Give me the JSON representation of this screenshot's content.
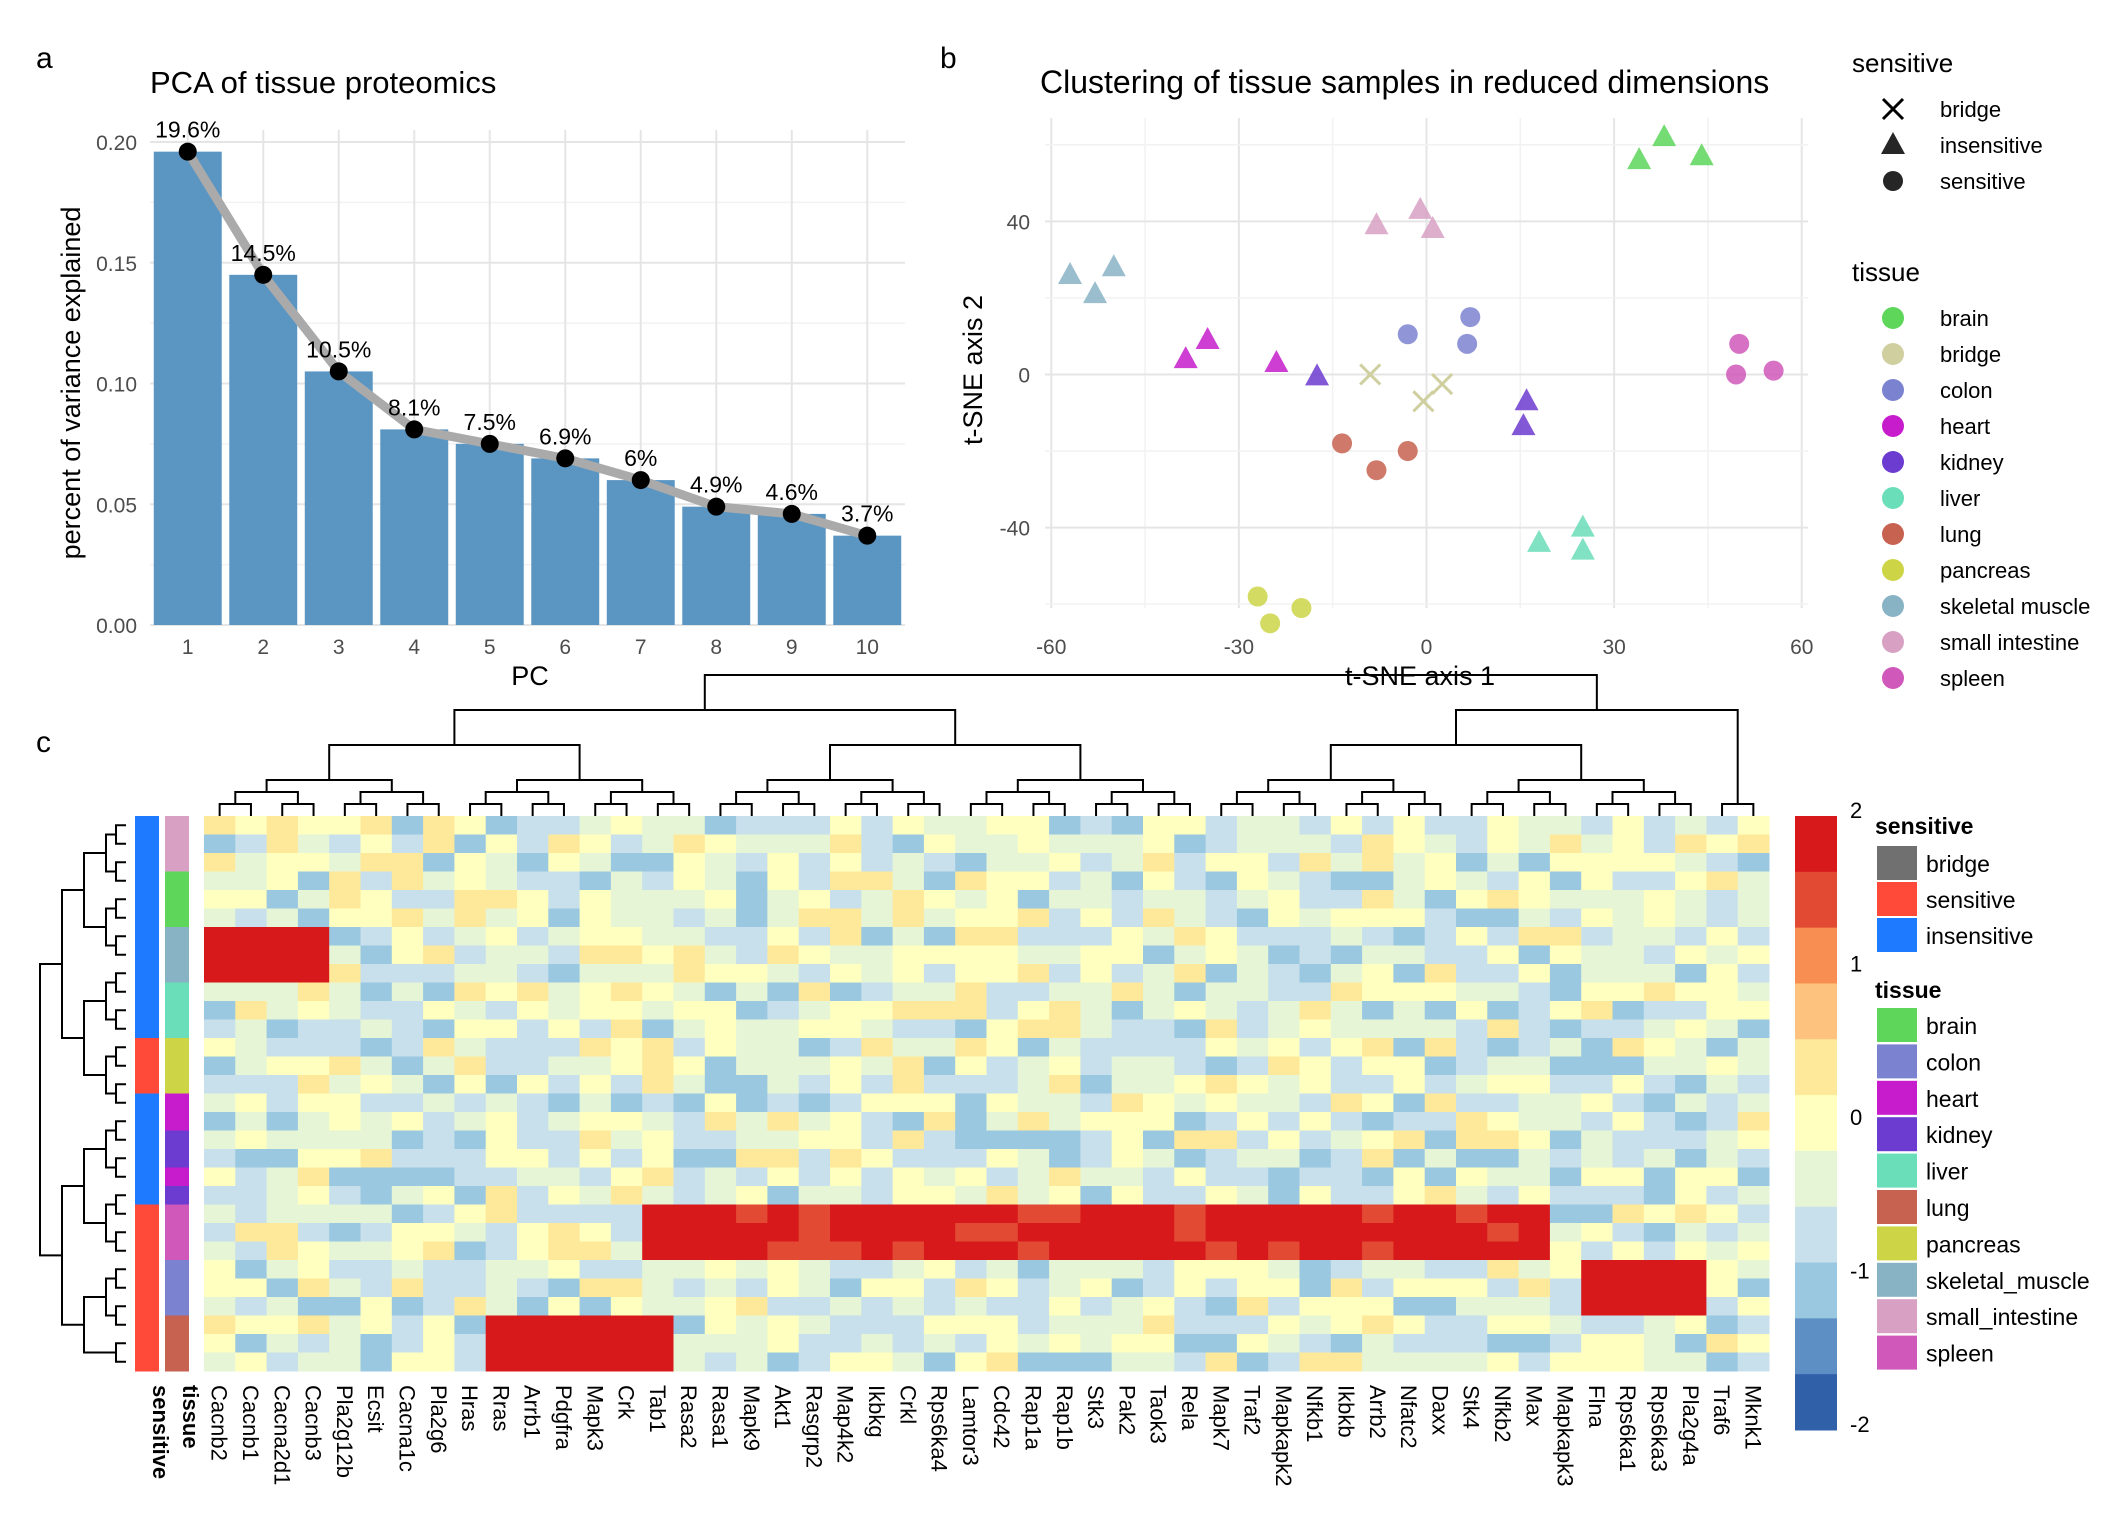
{
  "panels": {
    "a": "a",
    "b": "b",
    "c": "c"
  },
  "chart_data": [
    {
      "type": "bar",
      "title": "PCA of tissue proteomics",
      "xlabel": "PC",
      "ylabel": "percent of variance explained",
      "categories": [
        "1",
        "2",
        "3",
        "4",
        "5",
        "6",
        "7",
        "8",
        "9",
        "10"
      ],
      "values": [
        0.196,
        0.145,
        0.105,
        0.081,
        0.075,
        0.069,
        0.06,
        0.049,
        0.046,
        0.037
      ],
      "labels": [
        "19.6%",
        "14.5%",
        "10.5%",
        "8.1%",
        "7.5%",
        "6.9%",
        "6%",
        "4.9%",
        "4.6%",
        "3.7%"
      ],
      "ylim": [
        0,
        0.2
      ],
      "yticks": [
        0,
        0.05,
        0.1,
        0.15,
        0.2
      ],
      "ytick_labels": [
        "0.00",
        "0.05",
        "0.10",
        "0.15",
        "0.20"
      ],
      "bar_color": "#5B95C2",
      "line_color": "#AAAAAA",
      "grid": true
    },
    {
      "type": "scatter",
      "title": "Clustering of tissue samples in reduced dimensions",
      "xlabel": "t-SNE axis 1",
      "ylabel": "t-SNE axis 2",
      "xlim": [
        -61,
        61
      ],
      "ylim": [
        -61,
        67
      ],
      "xticks": [
        -60,
        -30,
        0,
        30,
        60
      ],
      "yticks": [
        -40,
        0,
        40
      ],
      "grid": true,
      "shape_legend": {
        "title": "sensitive",
        "items": [
          {
            "label": "bridge",
            "shape": "cross"
          },
          {
            "label": "insensitive",
            "shape": "triangle"
          },
          {
            "label": "sensitive",
            "shape": "circle"
          }
        ]
      },
      "color_legend": {
        "title": "tissue",
        "items": [
          {
            "label": "brain",
            "color": "#5DD65A"
          },
          {
            "label": "bridge",
            "color": "#CFCFA0"
          },
          {
            "label": "colon",
            "color": "#7B83D0"
          },
          {
            "label": "heart",
            "color": "#C61CCB"
          },
          {
            "label": "kidney",
            "color": "#6C3BCF"
          },
          {
            "label": "liver",
            "color": "#6ADDB9"
          },
          {
            "label": "lung",
            "color": "#C76150"
          },
          {
            "label": "pancreas",
            "color": "#CDD547"
          },
          {
            "label": "skeletal muscle",
            "color": "#88B3C5"
          },
          {
            "label": "small intestine",
            "color": "#D8A1C4"
          },
          {
            "label": "spleen",
            "color": "#CF58BA"
          }
        ]
      },
      "points": [
        {
          "x": 34,
          "y": 56,
          "tissue": "brain",
          "shape": "triangle"
        },
        {
          "x": 38,
          "y": 62,
          "tissue": "brain",
          "shape": "triangle"
        },
        {
          "x": 44,
          "y": 57,
          "tissue": "brain",
          "shape": "triangle"
        },
        {
          "x": -9,
          "y": 0,
          "tissue": "bridge",
          "shape": "cross"
        },
        {
          "x": -0.5,
          "y": -7,
          "tissue": "bridge",
          "shape": "cross"
        },
        {
          "x": 2.5,
          "y": -2.5,
          "tissue": "bridge",
          "shape": "cross"
        },
        {
          "x": -3,
          "y": 10.5,
          "tissue": "colon",
          "shape": "circle"
        },
        {
          "x": 7,
          "y": 15,
          "tissue": "colon",
          "shape": "circle"
        },
        {
          "x": 6.5,
          "y": 8,
          "tissue": "colon",
          "shape": "circle"
        },
        {
          "x": -38.5,
          "y": 4,
          "tissue": "heart",
          "shape": "triangle"
        },
        {
          "x": -35,
          "y": 9,
          "tissue": "heart",
          "shape": "triangle"
        },
        {
          "x": -24,
          "y": 3,
          "tissue": "heart",
          "shape": "triangle"
        },
        {
          "x": -17.5,
          "y": -0.5,
          "tissue": "kidney",
          "shape": "triangle"
        },
        {
          "x": 16,
          "y": -7,
          "tissue": "kidney",
          "shape": "triangle"
        },
        {
          "x": 15.5,
          "y": -13.5,
          "tissue": "kidney",
          "shape": "triangle"
        },
        {
          "x": 18,
          "y": -44,
          "tissue": "liver",
          "shape": "triangle"
        },
        {
          "x": 25,
          "y": -40,
          "tissue": "liver",
          "shape": "triangle"
        },
        {
          "x": 25,
          "y": -46,
          "tissue": "liver",
          "shape": "triangle"
        },
        {
          "x": -13.5,
          "y": -18,
          "tissue": "lung",
          "shape": "circle"
        },
        {
          "x": -8,
          "y": -25,
          "tissue": "lung",
          "shape": "circle"
        },
        {
          "x": -3,
          "y": -20,
          "tissue": "lung",
          "shape": "circle"
        },
        {
          "x": -27,
          "y": -58,
          "tissue": "pancreas",
          "shape": "circle"
        },
        {
          "x": -25,
          "y": -65,
          "tissue": "pancreas",
          "shape": "circle"
        },
        {
          "x": -20,
          "y": -61,
          "tissue": "pancreas",
          "shape": "circle"
        },
        {
          "x": -57,
          "y": 26,
          "tissue": "skeletal muscle",
          "shape": "triangle"
        },
        {
          "x": -53,
          "y": 21,
          "tissue": "skeletal muscle",
          "shape": "triangle"
        },
        {
          "x": -50,
          "y": 28,
          "tissue": "skeletal muscle",
          "shape": "triangle"
        },
        {
          "x": -8,
          "y": 39,
          "tissue": "small intestine",
          "shape": "triangle"
        },
        {
          "x": -1,
          "y": 43,
          "tissue": "small intestine",
          "shape": "triangle"
        },
        {
          "x": 1,
          "y": 38,
          "tissue": "small intestine",
          "shape": "triangle"
        },
        {
          "x": 50,
          "y": 8,
          "tissue": "spleen",
          "shape": "circle"
        },
        {
          "x": 49.5,
          "y": 0,
          "tissue": "spleen",
          "shape": "circle"
        },
        {
          "x": 55.5,
          "y": 1,
          "tissue": "spleen",
          "shape": "circle"
        }
      ]
    },
    {
      "type": "heatmap",
      "columns": [
        "Cacnb2",
        "Cacnb1",
        "Cacna2d1",
        "Cacnb3",
        "Pla2g12b",
        "Ecsit",
        "Cacna1c",
        "Pla2g6",
        "Hras",
        "Rras",
        "Arrb1",
        "Pdgfra",
        "Mapk3",
        "Crk",
        "Tab1",
        "Rasa2",
        "Rasa1",
        "Mapk9",
        "Akt1",
        "Rasgrp2",
        "Map4k2",
        "Ikbkg",
        "Crkl",
        "Rps6ka4",
        "Lamtor3",
        "Cdc42",
        "Rap1a",
        "Rap1b",
        "Stk3",
        "Pak2",
        "Taok3",
        "Rela",
        "Mapk7",
        "Traf2",
        "Mapkapk2",
        "Nfkb1",
        "Ikbkb",
        "Arrb2",
        "Nfatc2",
        "Daxx",
        "Stk4",
        "Nfkb2",
        "Max",
        "Mapkapk3",
        "Flna",
        "Rps6ka1",
        "Rps6ka3",
        "Pla2g4a",
        "Traf6",
        "Mknk1"
      ],
      "row_tissue": [
        "small_intestine",
        "small_intestine",
        "small_intestine",
        "brain",
        "brain",
        "brain",
        "skeletal_muscle",
        "skeletal_muscle",
        "skeletal_muscle",
        "liver",
        "liver",
        "liver",
        "pancreas",
        "pancreas",
        "pancreas",
        "heart",
        "heart",
        "kidney",
        "kidney",
        "heart",
        "kidney",
        "spleen",
        "spleen",
        "spleen",
        "colon",
        "colon",
        "colon",
        "lung",
        "lung",
        "lung"
      ],
      "row_sensitive": [
        "insensitive",
        "insensitive",
        "insensitive",
        "insensitive",
        "insensitive",
        "insensitive",
        "insensitive",
        "insensitive",
        "insensitive",
        "insensitive",
        "insensitive",
        "insensitive",
        "sensitive",
        "sensitive",
        "sensitive",
        "insensitive",
        "insensitive",
        "insensitive",
        "insensitive",
        "insensitive",
        "insensitive",
        "sensitive",
        "sensitive",
        "sensitive",
        "sensitive",
        "sensitive",
        "sensitive",
        "sensitive",
        "sensitive",
        "sensitive"
      ],
      "annotation_labels": [
        "sensitive",
        "tissue"
      ],
      "scale": {
        "ticks": [
          "2",
          "1",
          "0",
          "-1",
          "-2"
        ],
        "range": [
          -2,
          2
        ],
        "colors": [
          "#D7191C",
          "#E34A33",
          "#F98E52",
          "#FDC27D",
          "#FEE99A",
          "#FFFFBF",
          "#E6F5D6",
          "#C7E0EC",
          "#9AC8E0",
          "#5D8FC4",
          "#3060A8"
        ]
      },
      "sensitive_legend": {
        "title": "sensitive",
        "items": [
          {
            "label": "bridge",
            "color": "#707070"
          },
          {
            "label": "sensitive",
            "color": "#FF4A3A"
          },
          {
            "label": "insensitive",
            "color": "#1E7BFF"
          }
        ]
      },
      "tissue_legend": {
        "title": "tissue",
        "items": [
          {
            "label": "brain",
            "color": "#5DD65A"
          },
          {
            "label": "colon",
            "color": "#7B83D0"
          },
          {
            "label": "heart",
            "color": "#C61CCB"
          },
          {
            "label": "kidney",
            "color": "#6C3BCF"
          },
          {
            "label": "liver",
            "color": "#6ADDB9"
          },
          {
            "label": "lung",
            "color": "#C76150"
          },
          {
            "label": "pancreas",
            "color": "#CDD547"
          },
          {
            "label": "skeletal_muscle",
            "color": "#88B3C5"
          },
          {
            "label": "small_intestine",
            "color": "#D8A1C4"
          },
          {
            "label": "spleen",
            "color": "#CF58BA"
          }
        ]
      }
    }
  ]
}
